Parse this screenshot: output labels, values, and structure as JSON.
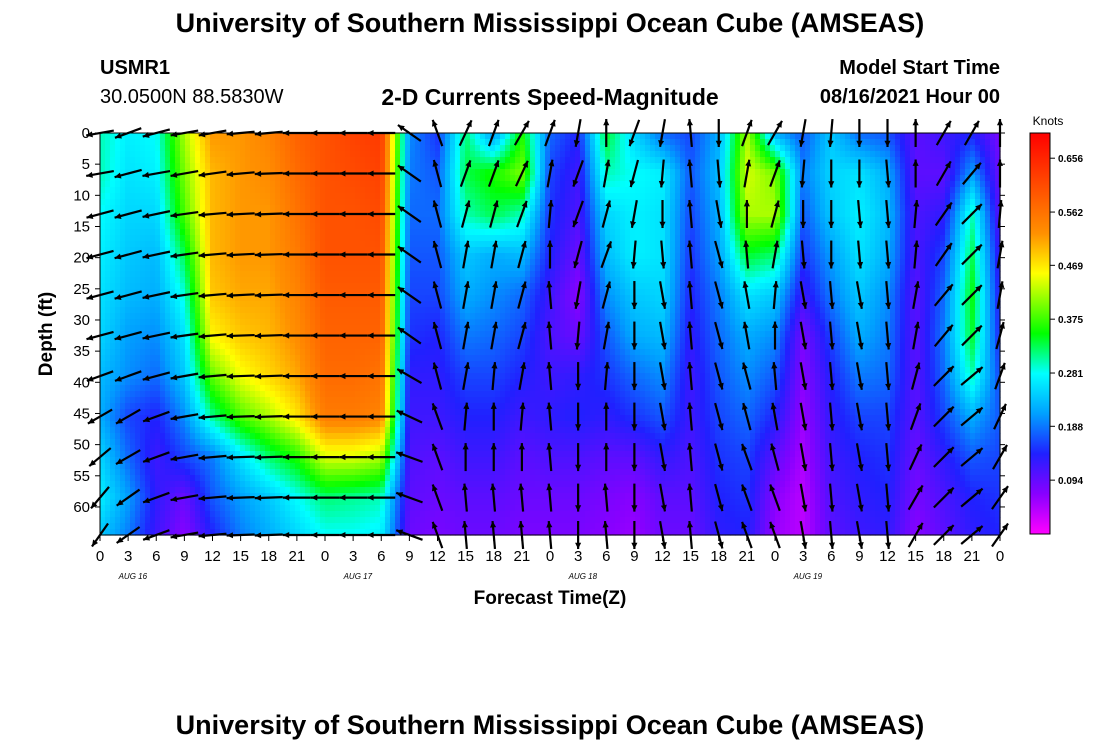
{
  "header": {
    "title": "University of Southern Mississippi Ocean Cube (AMSEAS)",
    "station_id": "USMR1",
    "location": "30.0500N  88.5830W",
    "subtitle": "2-D Currents Speed-Magnitude",
    "model_start_label": "Model Start Time",
    "model_start_value": "08/16/2021 Hour 00"
  },
  "footer": {
    "title": "University of Southern Mississippi Ocean Cube (AMSEAS)"
  },
  "chart_data": {
    "type": "heatmap",
    "title": "2-D Currents Speed-Magnitude",
    "xlabel": "Forecast Time(Z)",
    "ylabel": "Depth (ft)",
    "x_tick_labels": [
      "0",
      "3",
      "6",
      "9",
      "12",
      "15",
      "18",
      "21",
      "0",
      "3",
      "6",
      "9",
      "12",
      "15",
      "18",
      "21",
      "0",
      "3",
      "6",
      "9",
      "12",
      "15",
      "18",
      "21",
      "0",
      "3",
      "6",
      "9",
      "12",
      "15",
      "18",
      "21",
      "0"
    ],
    "day_labels": [
      "AUG 16",
      "AUG 17",
      "AUG 18",
      "AUG 19"
    ],
    "y_ticks": [
      0,
      5,
      10,
      15,
      20,
      25,
      30,
      35,
      40,
      45,
      50,
      55,
      60
    ],
    "ylim": [
      0,
      64.5
    ],
    "xlim_hours": [
      0,
      96
    ],
    "colorbar": {
      "unit": "Knots",
      "tick_labels": [
        "0.656",
        "0.562",
        "0.469",
        "0.375",
        "0.281",
        "0.188",
        "0.094"
      ],
      "range": [
        0.0,
        0.7
      ]
    },
    "depths_ft": [
      0,
      6.5,
      13,
      19.5,
      26,
      32.5,
      39,
      45.5,
      52,
      58.5,
      64.5
    ],
    "time_hours": [
      0,
      3,
      6,
      9,
      12,
      15,
      18,
      21,
      24,
      27,
      30,
      33,
      36,
      39,
      42,
      45,
      48,
      51,
      54,
      57,
      60,
      63,
      66,
      69,
      72,
      75,
      78,
      81,
      84,
      87,
      90,
      93,
      96
    ],
    "speed_knots": [
      [
        0.3,
        0.27,
        0.28,
        0.42,
        0.52,
        0.52,
        0.54,
        0.58,
        0.6,
        0.62,
        0.63,
        0.2,
        0.15,
        0.32,
        0.2,
        0.36,
        0.18,
        0.14,
        0.34,
        0.25,
        0.18,
        0.16,
        0.22,
        0.42,
        0.22,
        0.17,
        0.24,
        0.18,
        0.17,
        0.1,
        0.12,
        0.14,
        0.08
      ],
      [
        0.3,
        0.26,
        0.27,
        0.4,
        0.5,
        0.52,
        0.53,
        0.57,
        0.6,
        0.61,
        0.62,
        0.19,
        0.17,
        0.33,
        0.36,
        0.4,
        0.16,
        0.12,
        0.3,
        0.28,
        0.27,
        0.17,
        0.23,
        0.44,
        0.4,
        0.19,
        0.25,
        0.26,
        0.22,
        0.1,
        0.1,
        0.21,
        0.09
      ],
      [
        0.28,
        0.25,
        0.25,
        0.38,
        0.5,
        0.52,
        0.52,
        0.56,
        0.6,
        0.6,
        0.61,
        0.18,
        0.18,
        0.3,
        0.33,
        0.3,
        0.15,
        0.11,
        0.25,
        0.27,
        0.26,
        0.16,
        0.22,
        0.42,
        0.42,
        0.17,
        0.24,
        0.27,
        0.23,
        0.11,
        0.13,
        0.3,
        0.1
      ],
      [
        0.27,
        0.24,
        0.23,
        0.33,
        0.5,
        0.52,
        0.52,
        0.55,
        0.6,
        0.6,
        0.6,
        0.17,
        0.17,
        0.24,
        0.22,
        0.23,
        0.14,
        0.09,
        0.23,
        0.27,
        0.26,
        0.15,
        0.21,
        0.34,
        0.32,
        0.15,
        0.21,
        0.26,
        0.22,
        0.11,
        0.16,
        0.33,
        0.12
      ],
      [
        0.26,
        0.23,
        0.22,
        0.29,
        0.49,
        0.51,
        0.51,
        0.54,
        0.59,
        0.59,
        0.59,
        0.16,
        0.16,
        0.22,
        0.2,
        0.18,
        0.12,
        0.07,
        0.2,
        0.24,
        0.25,
        0.14,
        0.19,
        0.26,
        0.24,
        0.12,
        0.19,
        0.24,
        0.2,
        0.1,
        0.18,
        0.35,
        0.13
      ],
      [
        0.25,
        0.21,
        0.2,
        0.26,
        0.46,
        0.49,
        0.5,
        0.53,
        0.58,
        0.58,
        0.58,
        0.15,
        0.14,
        0.19,
        0.18,
        0.16,
        0.11,
        0.09,
        0.17,
        0.22,
        0.23,
        0.13,
        0.18,
        0.22,
        0.2,
        0.08,
        0.16,
        0.22,
        0.19,
        0.1,
        0.19,
        0.34,
        0.14
      ],
      [
        0.23,
        0.2,
        0.18,
        0.24,
        0.39,
        0.45,
        0.48,
        0.51,
        0.57,
        0.57,
        0.56,
        0.13,
        0.13,
        0.16,
        0.16,
        0.14,
        0.12,
        0.13,
        0.15,
        0.18,
        0.2,
        0.12,
        0.17,
        0.2,
        0.17,
        0.07,
        0.14,
        0.19,
        0.18,
        0.1,
        0.18,
        0.3,
        0.16
      ],
      [
        0.22,
        0.16,
        0.14,
        0.2,
        0.31,
        0.38,
        0.42,
        0.47,
        0.55,
        0.55,
        0.54,
        0.12,
        0.12,
        0.14,
        0.14,
        0.12,
        0.13,
        0.14,
        0.13,
        0.15,
        0.17,
        0.12,
        0.16,
        0.18,
        0.14,
        0.06,
        0.13,
        0.16,
        0.16,
        0.1,
        0.16,
        0.22,
        0.17
      ],
      [
        0.25,
        0.18,
        0.12,
        0.16,
        0.19,
        0.26,
        0.32,
        0.36,
        0.44,
        0.44,
        0.42,
        0.11,
        0.1,
        0.12,
        0.12,
        0.1,
        0.11,
        0.11,
        0.1,
        0.1,
        0.13,
        0.11,
        0.15,
        0.16,
        0.1,
        0.05,
        0.12,
        0.14,
        0.15,
        0.09,
        0.13,
        0.17,
        0.16
      ],
      [
        0.27,
        0.21,
        0.13,
        0.09,
        0.17,
        0.21,
        0.24,
        0.28,
        0.32,
        0.31,
        0.3,
        0.1,
        0.09,
        0.1,
        0.1,
        0.09,
        0.09,
        0.09,
        0.08,
        0.07,
        0.1,
        0.1,
        0.14,
        0.15,
        0.07,
        0.04,
        0.11,
        0.13,
        0.14,
        0.08,
        0.11,
        0.14,
        0.15
      ],
      [
        0.24,
        0.19,
        0.12,
        0.07,
        0.14,
        0.19,
        0.22,
        0.25,
        0.28,
        0.28,
        0.27,
        0.09,
        0.08,
        0.09,
        0.09,
        0.08,
        0.08,
        0.08,
        0.07,
        0.06,
        0.09,
        0.09,
        0.13,
        0.14,
        0.06,
        0.04,
        0.1,
        0.12,
        0.13,
        0.07,
        0.1,
        0.13,
        0.14
      ]
    ],
    "direction_deg": [
      [
        170,
        160,
        165,
        170,
        170,
        175,
        175,
        180,
        180,
        180,
        180,
        215,
        250,
        295,
        290,
        300,
        290,
        100,
        270,
        110,
        100,
        265,
        90,
        290,
        300,
        100,
        95,
        90,
        90,
        270,
        300,
        300,
        270
      ],
      [
        170,
        165,
        170,
        170,
        172,
        175,
        178,
        180,
        180,
        180,
        180,
        215,
        255,
        290,
        290,
        295,
        280,
        110,
        280,
        105,
        95,
        265,
        85,
        280,
        290,
        95,
        90,
        90,
        85,
        270,
        300,
        310,
        270
      ],
      [
        165,
        165,
        168,
        172,
        175,
        177,
        178,
        180,
        180,
        180,
        180,
        215,
        255,
        285,
        285,
        290,
        275,
        110,
        285,
        100,
        90,
        265,
        80,
        270,
        285,
        90,
        90,
        85,
        85,
        275,
        305,
        315,
        275
      ],
      [
        165,
        165,
        168,
        172,
        175,
        177,
        178,
        180,
        180,
        180,
        180,
        215,
        255,
        280,
        280,
        285,
        270,
        105,
        290,
        95,
        85,
        265,
        75,
        265,
        280,
        85,
        90,
        85,
        85,
        275,
        305,
        315,
        280
      ],
      [
        165,
        165,
        168,
        172,
        175,
        177,
        178,
        180,
        180,
        180,
        180,
        215,
        255,
        280,
        280,
        285,
        265,
        100,
        285,
        90,
        80,
        265,
        75,
        260,
        275,
        80,
        85,
        80,
        85,
        280,
        310,
        315,
        280
      ],
      [
        165,
        165,
        168,
        172,
        175,
        178,
        178,
        180,
        180,
        180,
        180,
        215,
        255,
        280,
        280,
        285,
        265,
        95,
        280,
        90,
        80,
        265,
        75,
        260,
        270,
        80,
        85,
        80,
        85,
        280,
        310,
        315,
        285
      ],
      [
        160,
        160,
        165,
        170,
        175,
        178,
        178,
        180,
        180,
        180,
        180,
        210,
        255,
        280,
        275,
        280,
        265,
        90,
        275,
        90,
        80,
        265,
        75,
        255,
        265,
        80,
        85,
        80,
        85,
        285,
        315,
        320,
        290
      ],
      [
        150,
        150,
        160,
        170,
        175,
        178,
        178,
        180,
        180,
        180,
        180,
        205,
        250,
        275,
        270,
        275,
        265,
        90,
        270,
        90,
        80,
        265,
        75,
        255,
        260,
        80,
        85,
        80,
        85,
        290,
        315,
        320,
        295
      ],
      [
        140,
        150,
        160,
        170,
        175,
        178,
        178,
        180,
        180,
        180,
        180,
        200,
        250,
        270,
        270,
        270,
        265,
        90,
        270,
        90,
        80,
        265,
        75,
        250,
        255,
        80,
        85,
        80,
        85,
        295,
        315,
        320,
        300
      ],
      [
        130,
        145,
        160,
        170,
        175,
        178,
        178,
        180,
        180,
        180,
        180,
        200,
        250,
        265,
        265,
        265,
        265,
        90,
        265,
        90,
        80,
        265,
        75,
        250,
        250,
        80,
        85,
        80,
        85,
        300,
        315,
        320,
        305
      ],
      [
        125,
        145,
        160,
        170,
        175,
        178,
        178,
        180,
        180,
        180,
        180,
        200,
        250,
        265,
        265,
        265,
        265,
        90,
        265,
        90,
        80,
        265,
        75,
        250,
        250,
        80,
        85,
        80,
        85,
        300,
        315,
        320,
        305
      ]
    ]
  }
}
